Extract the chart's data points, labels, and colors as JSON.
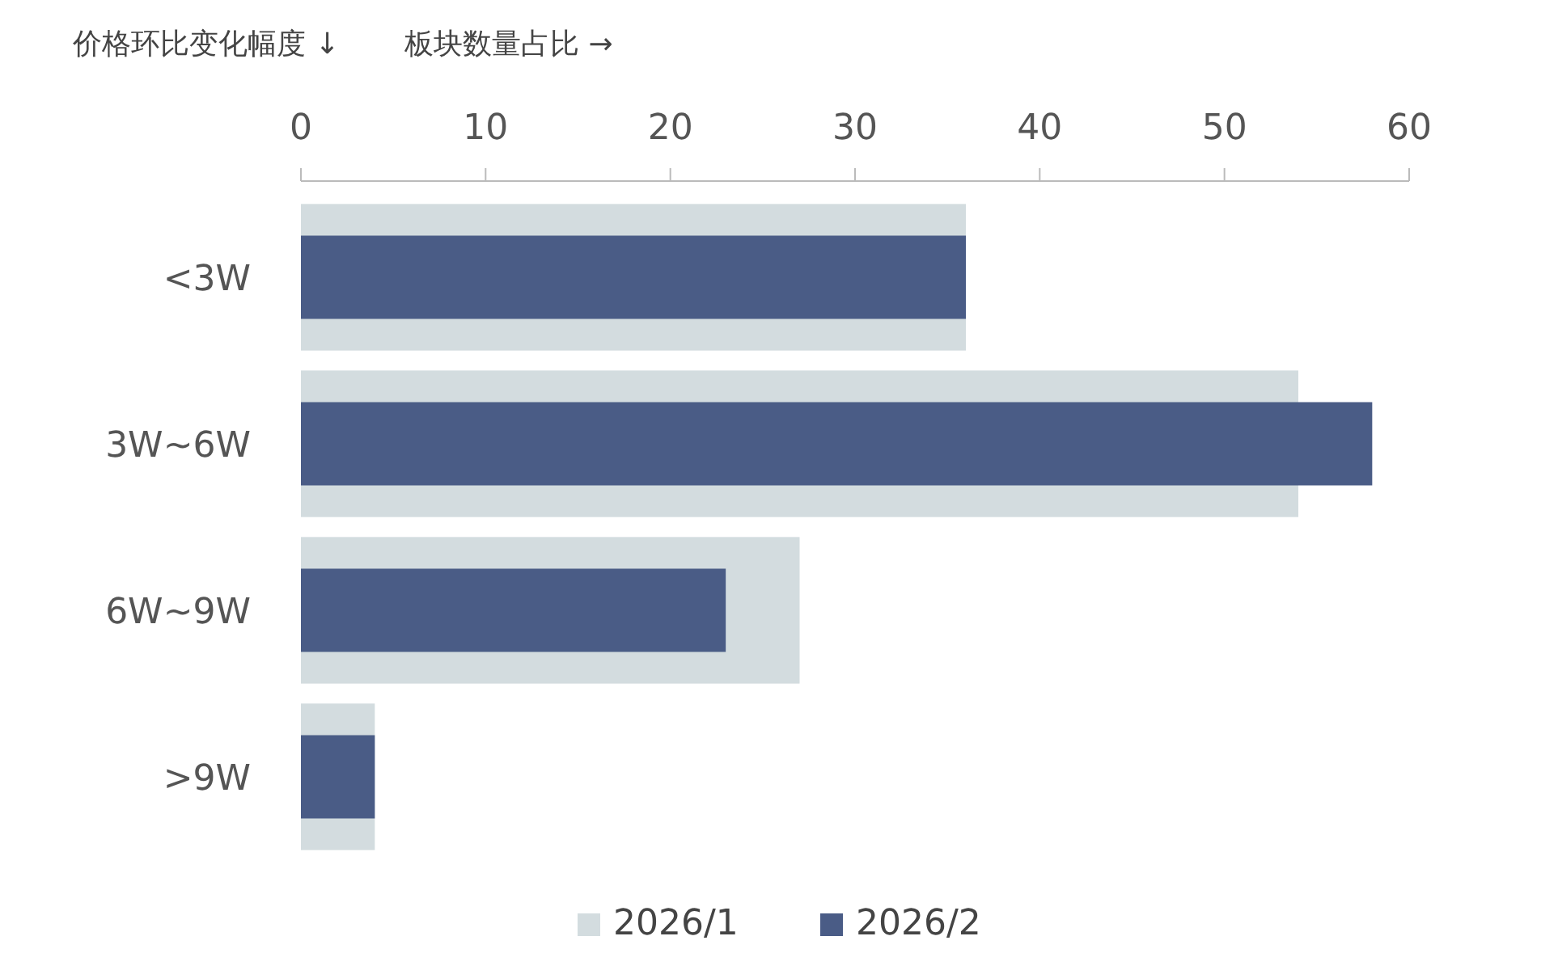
{
  "chart_data": {
    "type": "bar",
    "orientation": "horizontal",
    "ylabel": "价格环比变化幅度 ↓",
    "xlabel": "板块数量占比 →",
    "categories": [
      "<3W",
      "3W~6W",
      "6W~9W",
      ">9W"
    ],
    "series": [
      {
        "name": "2026/1",
        "color": "#d3dcdf",
        "values": [
          36,
          54,
          27,
          4
        ]
      },
      {
        "name": "2026/2",
        "color": "#4a5c86",
        "values": [
          36,
          58,
          23,
          4
        ]
      }
    ],
    "xlim": [
      0,
      60
    ],
    "xticks": [
      0,
      10,
      20,
      30,
      40,
      50,
      60
    ],
    "grid": false,
    "legend": "bottom"
  }
}
